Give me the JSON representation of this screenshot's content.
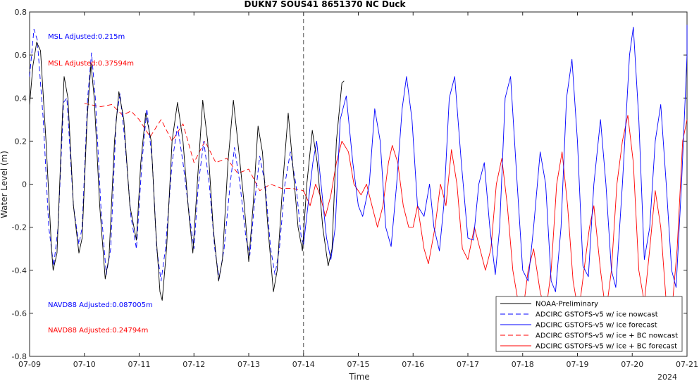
{
  "chart_data": {
    "type": "line",
    "title": "DUKN7 SOUS41 8651370 NC Duck",
    "xlabel": "Time",
    "ylabel": "Water Level (m)",
    "year_label": "2024",
    "xlim": [
      "07-09",
      "07-21"
    ],
    "ylim": [
      -0.8,
      0.8
    ],
    "x_ticks": [
      "07-09",
      "07-10",
      "07-11",
      "07-12",
      "07-13",
      "07-14",
      "07-15",
      "07-16",
      "07-17",
      "07-18",
      "07-19",
      "07-20",
      "07-21"
    ],
    "y_ticks": [
      "-0.8",
      "-0.6",
      "-0.4",
      "-0.2",
      "0",
      "0.2",
      "0.4",
      "0.6",
      "0.8"
    ],
    "nowcast_forecast_boundary": "07-14",
    "annotations": [
      {
        "text": "MSL Adjusted:0.215m",
        "color": "#0000ff"
      },
      {
        "text": "MSL Adjusted:0.37594m",
        "color": "#ff0000"
      },
      {
        "text": "NAVD88 Adjusted:0.087005m",
        "color": "#0000ff"
      },
      {
        "text": "NAVD88 Adjusted:0.24794m",
        "color": "#ff0000"
      }
    ],
    "legend_position": "bottom-right",
    "series": [
      {
        "name": "NOAA-Preliminary",
        "color": "#000000",
        "style": "solid",
        "points": [
          [
            0.0,
            0.37
          ],
          [
            0.06,
            0.55
          ],
          [
            0.13,
            0.66
          ],
          [
            0.2,
            0.62
          ],
          [
            0.3,
            0.2
          ],
          [
            0.4,
            -0.3
          ],
          [
            0.43,
            -0.4
          ],
          [
            0.5,
            -0.32
          ],
          [
            0.58,
            0.2
          ],
          [
            0.63,
            0.5
          ],
          [
            0.7,
            0.4
          ],
          [
            0.8,
            -0.1
          ],
          [
            0.9,
            -0.32
          ],
          [
            0.96,
            -0.25
          ],
          [
            1.05,
            0.3
          ],
          [
            1.12,
            0.56
          ],
          [
            1.18,
            0.4
          ],
          [
            1.28,
            -0.1
          ],
          [
            1.38,
            -0.44
          ],
          [
            1.45,
            -0.34
          ],
          [
            1.55,
            0.2
          ],
          [
            1.63,
            0.43
          ],
          [
            1.72,
            0.3
          ],
          [
            1.83,
            -0.1
          ],
          [
            1.95,
            -0.26
          ],
          [
            2.03,
            0.1
          ],
          [
            2.12,
            0.33
          ],
          [
            2.22,
            0.2
          ],
          [
            2.3,
            -0.2
          ],
          [
            2.38,
            -0.5
          ],
          [
            2.42,
            -0.54
          ],
          [
            2.5,
            -0.3
          ],
          [
            2.6,
            0.2
          ],
          [
            2.7,
            0.38
          ],
          [
            2.8,
            0.2
          ],
          [
            2.9,
            -0.12
          ],
          [
            2.98,
            -0.32
          ],
          [
            3.06,
            0.0
          ],
          [
            3.16,
            0.39
          ],
          [
            3.25,
            0.2
          ],
          [
            3.35,
            -0.2
          ],
          [
            3.45,
            -0.45
          ],
          [
            3.52,
            -0.35
          ],
          [
            3.62,
            0.1
          ],
          [
            3.72,
            0.39
          ],
          [
            3.8,
            0.2
          ],
          [
            3.92,
            -0.1
          ],
          [
            4.0,
            -0.36
          ],
          [
            4.08,
            -0.1
          ],
          [
            4.17,
            0.27
          ],
          [
            4.25,
            0.15
          ],
          [
            4.35,
            -0.2
          ],
          [
            4.45,
            -0.5
          ],
          [
            4.52,
            -0.4
          ],
          [
            4.62,
            0.0
          ],
          [
            4.72,
            0.33
          ],
          [
            4.8,
            0.1
          ],
          [
            4.9,
            -0.2
          ],
          [
            4.98,
            -0.31
          ],
          [
            5.06,
            0.0
          ],
          [
            5.16,
            0.25
          ],
          [
            5.25,
            0.1
          ],
          [
            5.35,
            -0.2
          ],
          [
            5.45,
            -0.38
          ],
          [
            5.52,
            -0.3
          ],
          [
            5.6,
            0.2
          ],
          [
            5.7,
            0.47
          ],
          [
            5.74,
            0.48
          ]
        ]
      },
      {
        "name": "ADCIRC GSTOFS-v5 w/ ice nowcast",
        "color": "#0000ff",
        "style": "dashed",
        "points": [
          [
            0.0,
            0.5
          ],
          [
            0.08,
            0.72
          ],
          [
            0.14,
            0.67
          ],
          [
            0.25,
            0.3
          ],
          [
            0.35,
            -0.2
          ],
          [
            0.44,
            -0.38
          ],
          [
            0.52,
            -0.2
          ],
          [
            0.62,
            0.38
          ],
          [
            0.68,
            0.4
          ],
          [
            0.8,
            -0.1
          ],
          [
            0.9,
            -0.28
          ],
          [
            0.96,
            -0.2
          ],
          [
            1.06,
            0.4
          ],
          [
            1.13,
            0.61
          ],
          [
            1.2,
            0.4
          ],
          [
            1.3,
            -0.1
          ],
          [
            1.4,
            -0.42
          ],
          [
            1.48,
            -0.3
          ],
          [
            1.58,
            0.3
          ],
          [
            1.65,
            0.42
          ],
          [
            1.74,
            0.2
          ],
          [
            1.85,
            -0.15
          ],
          [
            1.95,
            -0.3
          ],
          [
            2.05,
            0.1
          ],
          [
            2.14,
            0.35
          ],
          [
            2.24,
            0.1
          ],
          [
            2.32,
            -0.3
          ],
          [
            2.4,
            -0.45
          ],
          [
            2.48,
            -0.3
          ],
          [
            2.6,
            0.1
          ],
          [
            2.7,
            0.27
          ],
          [
            2.8,
            0.1
          ],
          [
            2.92,
            -0.15
          ],
          [
            3.0,
            -0.3
          ],
          [
            3.08,
            0.0
          ],
          [
            3.18,
            0.2
          ],
          [
            3.28,
            0.0
          ],
          [
            3.38,
            -0.3
          ],
          [
            3.46,
            -0.44
          ],
          [
            3.55,
            -0.3
          ],
          [
            3.66,
            0.0
          ],
          [
            3.74,
            0.17
          ],
          [
            3.84,
            0.0
          ],
          [
            3.95,
            -0.25
          ],
          [
            4.02,
            -0.33
          ],
          [
            4.1,
            -0.1
          ],
          [
            4.2,
            0.13
          ],
          [
            4.3,
            0.0
          ],
          [
            4.4,
            -0.3
          ],
          [
            4.48,
            -0.42
          ],
          [
            4.56,
            -0.3
          ],
          [
            4.66,
            0.0
          ],
          [
            4.76,
            0.15
          ],
          [
            4.86,
            0.0
          ],
          [
            4.96,
            -0.25
          ],
          [
            5.0,
            -0.28
          ]
        ]
      },
      {
        "name": "ADCIRC GSTOFS-v5 w/ ice forecast",
        "color": "#0000ff",
        "style": "solid",
        "points": [
          [
            5.0,
            -0.28
          ],
          [
            5.08,
            -0.1
          ],
          [
            5.17,
            0.1
          ],
          [
            5.24,
            0.2
          ],
          [
            5.32,
            0.0
          ],
          [
            5.42,
            -0.25
          ],
          [
            5.5,
            -0.35
          ],
          [
            5.58,
            -0.2
          ],
          [
            5.67,
            0.3
          ],
          [
            5.78,
            0.41
          ],
          [
            5.9,
            0.1
          ],
          [
            6.0,
            -0.1
          ],
          [
            6.08,
            -0.15
          ],
          [
            6.2,
            0.0
          ],
          [
            6.3,
            0.35
          ],
          [
            6.4,
            0.2
          ],
          [
            6.5,
            -0.2
          ],
          [
            6.6,
            -0.29
          ],
          [
            6.7,
            0.0
          ],
          [
            6.8,
            0.35
          ],
          [
            6.88,
            0.5
          ],
          [
            6.98,
            0.3
          ],
          [
            7.08,
            -0.1
          ],
          [
            7.2,
            -0.15
          ],
          [
            7.3,
            0.0
          ],
          [
            7.38,
            -0.2
          ],
          [
            7.48,
            -0.31
          ],
          [
            7.56,
            -0.1
          ],
          [
            7.66,
            0.4
          ],
          [
            7.76,
            0.5
          ],
          [
            7.88,
            0.1
          ],
          [
            8.0,
            -0.25
          ],
          [
            8.1,
            -0.26
          ],
          [
            8.2,
            0.0
          ],
          [
            8.3,
            0.1
          ],
          [
            8.4,
            -0.2
          ],
          [
            8.5,
            -0.42
          ],
          [
            8.58,
            -0.2
          ],
          [
            8.68,
            0.4
          ],
          [
            8.78,
            0.5
          ],
          [
            8.9,
            0.0
          ],
          [
            9.0,
            -0.4
          ],
          [
            9.1,
            -0.45
          ],
          [
            9.2,
            -0.2
          ],
          [
            9.32,
            0.15
          ],
          [
            9.42,
            0.0
          ],
          [
            9.52,
            -0.45
          ],
          [
            9.6,
            -0.5
          ],
          [
            9.7,
            -0.2
          ],
          [
            9.8,
            0.4
          ],
          [
            9.9,
            0.58
          ],
          [
            10.0,
            0.2
          ],
          [
            10.1,
            -0.38
          ],
          [
            10.2,
            -0.43
          ],
          [
            10.3,
            0.0
          ],
          [
            10.42,
            0.3
          ],
          [
            10.52,
            0.0
          ],
          [
            10.62,
            -0.4
          ],
          [
            10.7,
            -0.48
          ],
          [
            10.82,
            0.0
          ],
          [
            10.95,
            0.6
          ],
          [
            11.02,
            0.73
          ],
          [
            11.12,
            0.3
          ],
          [
            11.22,
            -0.35
          ],
          [
            11.32,
            -0.2
          ],
          [
            11.42,
            0.2
          ],
          [
            11.52,
            0.37
          ],
          [
            11.62,
            0.0
          ],
          [
            11.72,
            -0.4
          ],
          [
            11.8,
            -0.48
          ],
          [
            11.9,
            0.0
          ],
          [
            12.0,
            0.6
          ],
          [
            12.0,
            0.74
          ]
        ]
      },
      {
        "name": "ADCIRC GSTOFS-v5 w/ ice + BC nowcast",
        "color": "#ff0000",
        "style": "dashed",
        "points": [
          [
            1.0,
            0.375
          ],
          [
            1.3,
            0.36
          ],
          [
            1.5,
            0.37
          ],
          [
            1.7,
            0.32
          ],
          [
            1.85,
            0.34
          ],
          [
            2.0,
            0.3
          ],
          [
            2.2,
            0.22
          ],
          [
            2.4,
            0.3
          ],
          [
            2.6,
            0.2
          ],
          [
            2.8,
            0.28
          ],
          [
            3.0,
            0.1
          ],
          [
            3.2,
            0.2
          ],
          [
            3.4,
            0.1
          ],
          [
            3.6,
            0.12
          ],
          [
            3.8,
            0.05
          ],
          [
            4.0,
            0.07
          ],
          [
            4.2,
            -0.03
          ],
          [
            4.4,
            0.0
          ],
          [
            4.6,
            -0.02
          ],
          [
            4.8,
            -0.02
          ],
          [
            5.0,
            -0.03
          ]
        ]
      },
      {
        "name": "ADCIRC GSTOFS-v5 w/ ice + BC forecast",
        "color": "#ff0000",
        "style": "solid",
        "points": [
          [
            5.0,
            -0.03
          ],
          [
            5.12,
            -0.1
          ],
          [
            5.22,
            0.0
          ],
          [
            5.3,
            -0.05
          ],
          [
            5.4,
            -0.15
          ],
          [
            5.5,
            -0.05
          ],
          [
            5.6,
            0.1
          ],
          [
            5.7,
            0.2
          ],
          [
            5.82,
            0.15
          ],
          [
            5.92,
            0.0
          ],
          [
            6.05,
            -0.05
          ],
          [
            6.15,
            0.0
          ],
          [
            6.25,
            -0.1
          ],
          [
            6.35,
            -0.2
          ],
          [
            6.45,
            -0.1
          ],
          [
            6.55,
            0.1
          ],
          [
            6.62,
            0.18
          ],
          [
            6.72,
            0.1
          ],
          [
            6.82,
            -0.1
          ],
          [
            6.92,
            -0.2
          ],
          [
            7.0,
            -0.2
          ],
          [
            7.08,
            -0.1
          ],
          [
            7.2,
            -0.3
          ],
          [
            7.28,
            -0.37
          ],
          [
            7.4,
            -0.2
          ],
          [
            7.5,
            0.0
          ],
          [
            7.6,
            -0.1
          ],
          [
            7.7,
            0.16
          ],
          [
            7.8,
            0.0
          ],
          [
            7.9,
            -0.3
          ],
          [
            8.0,
            -0.35
          ],
          [
            8.12,
            -0.2
          ],
          [
            8.22,
            -0.3
          ],
          [
            8.32,
            -0.4
          ],
          [
            8.42,
            -0.3
          ],
          [
            8.52,
            0.0
          ],
          [
            8.62,
            0.12
          ],
          [
            8.72,
            -0.1
          ],
          [
            8.82,
            -0.4
          ],
          [
            8.92,
            -0.55
          ],
          [
            9.0,
            -0.6
          ],
          [
            9.1,
            -0.4
          ],
          [
            9.2,
            -0.3
          ],
          [
            9.32,
            -0.5
          ],
          [
            9.42,
            -0.6
          ],
          [
            9.52,
            -0.4
          ],
          [
            9.62,
            0.0
          ],
          [
            9.72,
            0.15
          ],
          [
            9.82,
            -0.1
          ],
          [
            9.92,
            -0.45
          ],
          [
            10.02,
            -0.6
          ],
          [
            10.12,
            -0.4
          ],
          [
            10.22,
            -0.2
          ],
          [
            10.3,
            -0.1
          ],
          [
            10.42,
            -0.4
          ],
          [
            10.52,
            -0.6
          ],
          [
            10.62,
            -0.4
          ],
          [
            10.72,
            0.0
          ],
          [
            10.82,
            0.2
          ],
          [
            10.92,
            0.32
          ],
          [
            11.02,
            0.1
          ],
          [
            11.12,
            -0.4
          ],
          [
            11.22,
            -0.55
          ],
          [
            11.32,
            -0.3
          ],
          [
            11.42,
            -0.03
          ],
          [
            11.52,
            -0.2
          ],
          [
            11.62,
            -0.55
          ],
          [
            11.72,
            -0.6
          ],
          [
            11.82,
            -0.3
          ],
          [
            11.92,
            0.2
          ],
          [
            12.0,
            0.3
          ]
        ]
      }
    ]
  }
}
